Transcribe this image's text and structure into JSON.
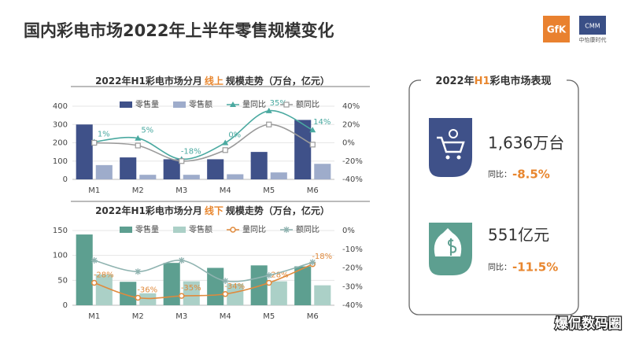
{
  "title": "国内彩电市场2022年上半年零售规模变化",
  "logos": {
    "gfk": "GfK",
    "cmm": "CMM",
    "cmm_name": "中怡康时代"
  },
  "chart_data": [
    {
      "type": "combo",
      "title_parts": [
        "2022年H1彩电市场分月",
        "线上",
        "规模走势（万台，亿元）"
      ],
      "categories": [
        "M1",
        "M2",
        "M3",
        "M4",
        "M5",
        "M6"
      ],
      "ylim": [
        0,
        400
      ],
      "yticks": [
        0,
        100,
        200,
        300,
        400
      ],
      "y2lim": [
        -40,
        40
      ],
      "y2ticks": [
        {
          "value": -40,
          "label": "-40%"
        },
        {
          "value": -20,
          "label": "-20%"
        },
        {
          "value": 0,
          "label": "0%"
        },
        {
          "value": 20,
          "label": "20%"
        },
        {
          "value": 40,
          "label": "40%"
        }
      ],
      "grid": true,
      "series": [
        {
          "name": "零售量",
          "kind": "bar",
          "color": "#3f5189",
          "values": [
            300,
            120,
            110,
            110,
            150,
            325
          ]
        },
        {
          "name": "零售额",
          "kind": "bar",
          "color": "#9eaccb",
          "values": [
            78,
            25,
            25,
            28,
            38,
            85
          ]
        },
        {
          "name": "量同比",
          "kind": "line",
          "axis": "y2",
          "marker": "triangle",
          "color": "#4aa9a0",
          "values": [
            1,
            5,
            -18,
            0,
            35,
            14
          ],
          "value_labels": [
            "1%",
            "5%",
            "-18%",
            "0%",
            "35%",
            "14%"
          ]
        },
        {
          "name": "额同比",
          "kind": "line",
          "axis": "y2",
          "marker": "square",
          "color": "#9a9a9a",
          "values": [
            0,
            -3,
            -20,
            -8,
            20,
            -2
          ]
        }
      ]
    },
    {
      "type": "combo",
      "title_parts": [
        "2022年H1彩电市场分月",
        "线下",
        "规模走势（万台，亿元）"
      ],
      "categories": [
        "M1",
        "M2",
        "M3",
        "M4",
        "M5",
        "M6"
      ],
      "ylim": [
        0,
        150
      ],
      "yticks": [
        0,
        50,
        100,
        150
      ],
      "y2lim": [
        -40,
        0
      ],
      "y2ticks": [
        {
          "value": -40,
          "label": "-40%"
        },
        {
          "value": -30,
          "label": "-30%"
        },
        {
          "value": -20,
          "label": "-20%"
        },
        {
          "value": -10,
          "label": "-10%"
        },
        {
          "value": 0,
          "label": "0%"
        }
      ],
      "grid": true,
      "series": [
        {
          "name": "零售量",
          "kind": "bar",
          "color": "#5d9f90",
          "values": [
            142,
            47,
            85,
            75,
            80,
            78
          ]
        },
        {
          "name": "零售额",
          "kind": "bar",
          "color": "#abd0c7",
          "values": [
            62,
            24,
            48,
            43,
            48,
            40
          ]
        },
        {
          "name": "量同比",
          "kind": "line",
          "axis": "y2",
          "marker": "circle",
          "color": "#e08a3c",
          "values": [
            -28,
            -36,
            -35,
            -34,
            -28,
            -18
          ],
          "value_labels": [
            "-28%",
            "-36%",
            "-35%",
            "-34%",
            "-28%",
            "-18%"
          ]
        },
        {
          "name": "额同比",
          "kind": "line",
          "axis": "y2",
          "marker": "star",
          "color": "#8fb3b0",
          "values": [
            -16,
            -22,
            -16,
            -27,
            -24,
            -17
          ]
        }
      ]
    }
  ],
  "panel": {
    "title_parts": [
      "2022年",
      "H1",
      "彩电市场表现"
    ],
    "kpis": [
      {
        "value": "1,636万台",
        "yoy_label": "同比：",
        "yoy": "-8.5%"
      },
      {
        "value": "551亿元",
        "yoy_label": "同比：",
        "yoy": "-11.5%"
      }
    ]
  },
  "watermark": "爆侃数码圈"
}
